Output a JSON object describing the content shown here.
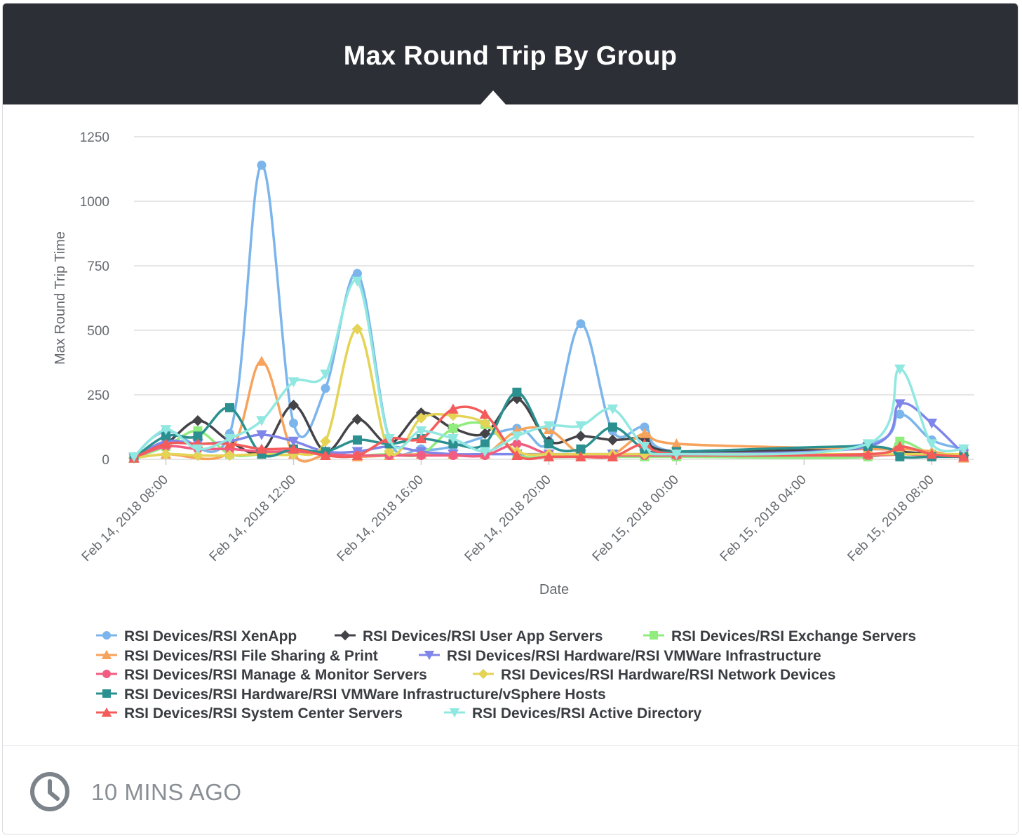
{
  "header": {
    "title": "Max Round Trip By Group"
  },
  "footer": {
    "time_label": "10 MINS AGO",
    "icon": "clock-icon"
  },
  "chart_data": {
    "type": "line",
    "title": "Max Round Trip By Group",
    "xlabel": "Date",
    "ylabel": "Max Round Trip Time",
    "ylim": [
      0,
      1250
    ],
    "yticks": [
      0,
      250,
      500,
      750,
      1000,
      1250
    ],
    "xlim": [
      "2018-02-14 07:00",
      "2018-02-15 09:20"
    ],
    "xticks": [
      "Feb 14, 2018 08:00",
      "Feb 14, 2018 12:00",
      "Feb 14, 2018 16:00",
      "Feb 14, 2018 20:00",
      "Feb 15, 2018 00:00",
      "Feb 15, 2018 04:00",
      "Feb 15, 2018 08:00"
    ],
    "grid": "horizontal",
    "legend_position": "bottom",
    "series": [
      {
        "name": "RSI Devices/RSI XenApp",
        "color": "#7cb5ec",
        "marker": "circle",
        "points": [
          [
            "2018-02-14 07:00",
            10
          ],
          [
            "2018-02-14 08:00",
            110
          ],
          [
            "2018-02-14 10:00",
            100
          ],
          [
            "2018-02-14 11:00",
            1140
          ],
          [
            "2018-02-14 12:00",
            140
          ],
          [
            "2018-02-14 13:00",
            275
          ],
          [
            "2018-02-14 14:00",
            720
          ],
          [
            "2018-02-14 15:00",
            80
          ],
          [
            "2018-02-14 16:00",
            40
          ],
          [
            "2018-02-14 17:00",
            50
          ],
          [
            "2018-02-14 19:00",
            120
          ],
          [
            "2018-02-14 20:00",
            70
          ],
          [
            "2018-02-14 21:00",
            525
          ],
          [
            "2018-02-14 22:00",
            110
          ],
          [
            "2018-02-14 23:00",
            125
          ],
          [
            "2018-02-15 00:00",
            30
          ],
          [
            "2018-02-15 06:00",
            60
          ],
          [
            "2018-02-15 07:00",
            175
          ],
          [
            "2018-02-15 08:00",
            75
          ],
          [
            "2018-02-15 09:00",
            40
          ]
        ]
      },
      {
        "name": "RSI Devices/RSI User App Servers",
        "color": "#434348",
        "marker": "diamond",
        "points": [
          [
            "2018-02-14 07:00",
            5
          ],
          [
            "2018-02-14 08:00",
            60
          ],
          [
            "2018-02-14 09:00",
            150
          ],
          [
            "2018-02-14 10:00",
            70
          ],
          [
            "2018-02-14 11:00",
            30
          ],
          [
            "2018-02-14 12:00",
            210
          ],
          [
            "2018-02-14 13:00",
            30
          ],
          [
            "2018-02-14 14:00",
            155
          ],
          [
            "2018-02-14 15:00",
            60
          ],
          [
            "2018-02-14 16:00",
            180
          ],
          [
            "2018-02-14 17:00",
            120
          ],
          [
            "2018-02-14 18:00",
            100
          ],
          [
            "2018-02-14 19:00",
            235
          ],
          [
            "2018-02-14 20:00",
            70
          ],
          [
            "2018-02-14 21:00",
            90
          ],
          [
            "2018-02-14 22:00",
            75
          ],
          [
            "2018-02-14 23:00",
            80
          ],
          [
            "2018-02-15 00:00",
            30
          ],
          [
            "2018-02-15 06:00",
            40
          ],
          [
            "2018-02-15 07:00",
            30
          ],
          [
            "2018-02-15 08:00",
            20
          ],
          [
            "2018-02-15 09:00",
            15
          ]
        ]
      },
      {
        "name": "RSI Devices/RSI Exchange Servers",
        "color": "#90ed7d",
        "marker": "square",
        "points": [
          [
            "2018-02-14 07:00",
            5
          ],
          [
            "2018-02-14 08:00",
            50
          ],
          [
            "2018-02-14 09:00",
            110
          ],
          [
            "2018-02-14 10:00",
            20
          ],
          [
            "2018-02-14 11:00",
            20
          ],
          [
            "2018-02-14 12:00",
            30
          ],
          [
            "2018-02-14 13:00",
            20
          ],
          [
            "2018-02-14 14:00",
            15
          ],
          [
            "2018-02-14 15:00",
            20
          ],
          [
            "2018-02-14 16:00",
            20
          ],
          [
            "2018-02-14 17:00",
            120
          ],
          [
            "2018-02-14 18:00",
            135
          ],
          [
            "2018-02-14 19:00",
            20
          ],
          [
            "2018-02-14 20:00",
            10
          ],
          [
            "2018-02-14 21:00",
            10
          ],
          [
            "2018-02-14 22:00",
            10
          ],
          [
            "2018-02-14 23:00",
            10
          ],
          [
            "2018-02-15 00:00",
            10
          ],
          [
            "2018-02-15 06:00",
            10
          ],
          [
            "2018-02-15 07:00",
            70
          ],
          [
            "2018-02-15 08:00",
            20
          ],
          [
            "2018-02-15 09:00",
            10
          ]
        ]
      },
      {
        "name": "RSI Devices/RSI File Sharing & Print",
        "color": "#f7a35c",
        "marker": "triangle",
        "points": [
          [
            "2018-02-14 07:00",
            5
          ],
          [
            "2018-02-14 08:00",
            20
          ],
          [
            "2018-02-14 10:00",
            30
          ],
          [
            "2018-02-14 11:00",
            380
          ],
          [
            "2018-02-14 12:00",
            20
          ],
          [
            "2018-02-14 13:00",
            15
          ],
          [
            "2018-02-14 14:00",
            10
          ],
          [
            "2018-02-14 15:00",
            15
          ],
          [
            "2018-02-14 16:00",
            20
          ],
          [
            "2018-02-14 17:00",
            20
          ],
          [
            "2018-02-14 18:00",
            20
          ],
          [
            "2018-02-14 19:00",
            110
          ],
          [
            "2018-02-14 20:00",
            115
          ],
          [
            "2018-02-14 21:00",
            20
          ],
          [
            "2018-02-14 22:00",
            20
          ],
          [
            "2018-02-14 23:00",
            100
          ],
          [
            "2018-02-15 00:00",
            60
          ],
          [
            "2018-02-15 06:00",
            40
          ],
          [
            "2018-02-15 07:00",
            40
          ],
          [
            "2018-02-15 08:00",
            30
          ],
          [
            "2018-02-15 09:00",
            5
          ]
        ]
      },
      {
        "name": "RSI Devices/RSI Hardware/RSI VMWare Infrastructure",
        "color": "#8085e9",
        "marker": "triangle-down",
        "points": [
          [
            "2018-02-14 07:00",
            5
          ],
          [
            "2018-02-14 08:00",
            70
          ],
          [
            "2018-02-14 09:00",
            60
          ],
          [
            "2018-02-14 10:00",
            70
          ],
          [
            "2018-02-14 11:00",
            95
          ],
          [
            "2018-02-14 12:00",
            70
          ],
          [
            "2018-02-14 13:00",
            30
          ],
          [
            "2018-02-14 14:00",
            30
          ],
          [
            "2018-02-14 15:00",
            50
          ],
          [
            "2018-02-14 16:00",
            30
          ],
          [
            "2018-02-14 17:00",
            20
          ],
          [
            "2018-02-14 18:00",
            20
          ],
          [
            "2018-02-14 19:00",
            20
          ],
          [
            "2018-02-14 20:00",
            20
          ],
          [
            "2018-02-14 21:00",
            20
          ],
          [
            "2018-02-14 22:00",
            20
          ],
          [
            "2018-02-14 23:00",
            20
          ],
          [
            "2018-02-15 00:00",
            20
          ],
          [
            "2018-02-15 06:00",
            50
          ],
          [
            "2018-02-15 07:00",
            215
          ],
          [
            "2018-02-15 08:00",
            140
          ],
          [
            "2018-02-15 09:00",
            20
          ]
        ]
      },
      {
        "name": "RSI Devices/RSI Manage & Monitor Servers",
        "color": "#f15c80",
        "marker": "circle",
        "points": [
          [
            "2018-02-14 07:00",
            5
          ],
          [
            "2018-02-14 08:00",
            50
          ],
          [
            "2018-02-14 09:00",
            40
          ],
          [
            "2018-02-14 10:00",
            40
          ],
          [
            "2018-02-14 11:00",
            30
          ],
          [
            "2018-02-14 12:00",
            30
          ],
          [
            "2018-02-14 13:00",
            20
          ],
          [
            "2018-02-14 14:00",
            15
          ],
          [
            "2018-02-14 15:00",
            15
          ],
          [
            "2018-02-14 16:00",
            15
          ],
          [
            "2018-02-14 17:00",
            15
          ],
          [
            "2018-02-14 18:00",
            15
          ],
          [
            "2018-02-14 19:00",
            60
          ],
          [
            "2018-02-14 20:00",
            20
          ],
          [
            "2018-02-14 21:00",
            15
          ],
          [
            "2018-02-14 22:00",
            15
          ],
          [
            "2018-02-14 23:00",
            15
          ],
          [
            "2018-02-15 00:00",
            15
          ],
          [
            "2018-02-15 06:00",
            15
          ],
          [
            "2018-02-15 07:00",
            20
          ],
          [
            "2018-02-15 08:00",
            15
          ],
          [
            "2018-02-15 09:00",
            15
          ]
        ]
      },
      {
        "name": "RSI Devices/RSI Hardware/RSI Network Devices",
        "color": "#e4d354",
        "marker": "diamond",
        "points": [
          [
            "2018-02-14 07:00",
            5
          ],
          [
            "2018-02-14 08:00",
            20
          ],
          [
            "2018-02-14 09:00",
            15
          ],
          [
            "2018-02-14 10:00",
            15
          ],
          [
            "2018-02-14 11:00",
            20
          ],
          [
            "2018-02-14 12:00",
            20
          ],
          [
            "2018-02-14 13:00",
            70
          ],
          [
            "2018-02-14 14:00",
            505
          ],
          [
            "2018-02-14 15:00",
            30
          ],
          [
            "2018-02-14 16:00",
            160
          ],
          [
            "2018-02-14 17:00",
            170
          ],
          [
            "2018-02-14 18:00",
            140
          ],
          [
            "2018-02-14 19:00",
            30
          ],
          [
            "2018-02-14 20:00",
            20
          ],
          [
            "2018-02-14 21:00",
            20
          ],
          [
            "2018-02-14 22:00",
            20
          ],
          [
            "2018-02-14 23:00",
            20
          ],
          [
            "2018-02-15 00:00",
            20
          ],
          [
            "2018-02-15 06:00",
            20
          ],
          [
            "2018-02-15 07:00",
            20
          ],
          [
            "2018-02-15 08:00",
            20
          ],
          [
            "2018-02-15 09:00",
            20
          ]
        ]
      },
      {
        "name": "RSI Devices/RSI Hardware/RSI VMWare Infrastructure/vSphere Hosts",
        "color": "#2b908f",
        "marker": "square",
        "points": [
          [
            "2018-02-14 07:00",
            5
          ],
          [
            "2018-02-14 08:00",
            90
          ],
          [
            "2018-02-14 09:00",
            90
          ],
          [
            "2018-02-14 10:00",
            200
          ],
          [
            "2018-02-14 11:00",
            20
          ],
          [
            "2018-02-14 12:00",
            40
          ],
          [
            "2018-02-14 13:00",
            30
          ],
          [
            "2018-02-14 14:00",
            75
          ],
          [
            "2018-02-14 15:00",
            60
          ],
          [
            "2018-02-14 16:00",
            80
          ],
          [
            "2018-02-14 17:00",
            60
          ],
          [
            "2018-02-14 18:00",
            60
          ],
          [
            "2018-02-14 19:00",
            260
          ],
          [
            "2018-02-14 20:00",
            60
          ],
          [
            "2018-02-14 21:00",
            40
          ],
          [
            "2018-02-14 22:00",
            125
          ],
          [
            "2018-02-14 23:00",
            40
          ],
          [
            "2018-02-15 00:00",
            30
          ],
          [
            "2018-02-15 06:00",
            50
          ],
          [
            "2018-02-15 07:00",
            10
          ],
          [
            "2018-02-15 08:00",
            10
          ],
          [
            "2018-02-15 09:00",
            10
          ]
        ]
      },
      {
        "name": "RSI Devices/RSI System Center Servers",
        "color": "#f45b5b",
        "marker": "triangle",
        "points": [
          [
            "2018-02-14 07:00",
            5
          ],
          [
            "2018-02-14 08:00",
            60
          ],
          [
            "2018-02-14 09:00",
            60
          ],
          [
            "2018-02-14 10:00",
            60
          ],
          [
            "2018-02-14 11:00",
            40
          ],
          [
            "2018-02-14 12:00",
            40
          ],
          [
            "2018-02-14 13:00",
            15
          ],
          [
            "2018-02-14 14:00",
            15
          ],
          [
            "2018-02-14 15:00",
            80
          ],
          [
            "2018-02-14 16:00",
            80
          ],
          [
            "2018-02-14 17:00",
            195
          ],
          [
            "2018-02-14 18:00",
            175
          ],
          [
            "2018-02-14 19:00",
            15
          ],
          [
            "2018-02-14 20:00",
            10
          ],
          [
            "2018-02-14 21:00",
            10
          ],
          [
            "2018-02-14 22:00",
            10
          ],
          [
            "2018-02-14 23:00",
            60
          ],
          [
            "2018-02-15 00:00",
            20
          ],
          [
            "2018-02-15 06:00",
            20
          ],
          [
            "2018-02-15 07:00",
            50
          ],
          [
            "2018-02-15 08:00",
            20
          ],
          [
            "2018-02-15 09:00",
            10
          ]
        ]
      },
      {
        "name": "RSI Devices/RSI Active Directory",
        "color": "#91e8e1",
        "marker": "triangle-down",
        "points": [
          [
            "2018-02-14 07:00",
            10
          ],
          [
            "2018-02-14 08:00",
            115
          ],
          [
            "2018-02-14 09:00",
            40
          ],
          [
            "2018-02-14 10:00",
            80
          ],
          [
            "2018-02-14 11:00",
            150
          ],
          [
            "2018-02-14 12:00",
            300
          ],
          [
            "2018-02-14 13:00",
            330
          ],
          [
            "2018-02-14 14:00",
            690
          ],
          [
            "2018-02-14 15:00",
            80
          ],
          [
            "2018-02-14 16:00",
            110
          ],
          [
            "2018-02-14 17:00",
            80
          ],
          [
            "2018-02-14 18:00",
            30
          ],
          [
            "2018-02-14 19:00",
            90
          ],
          [
            "2018-02-14 20:00",
            130
          ],
          [
            "2018-02-14 21:00",
            130
          ],
          [
            "2018-02-14 22:00",
            195
          ],
          [
            "2018-02-14 23:00",
            50
          ],
          [
            "2018-02-15 00:00",
            20
          ],
          [
            "2018-02-15 06:00",
            60
          ],
          [
            "2018-02-15 07:00",
            350
          ],
          [
            "2018-02-15 08:00",
            60
          ],
          [
            "2018-02-15 09:00",
            40
          ]
        ]
      }
    ]
  }
}
